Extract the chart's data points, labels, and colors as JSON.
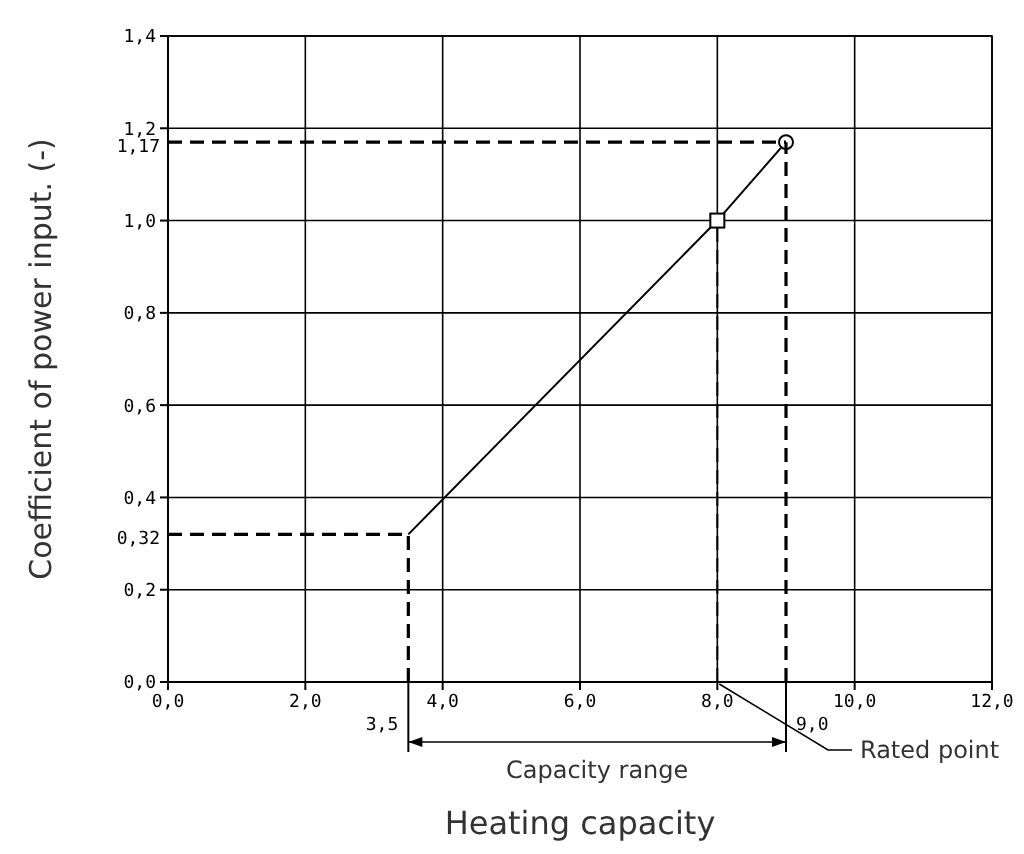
{
  "chart_data": {
    "type": "line",
    "xlabel": "Heating capacity",
    "ylabel": "Coefficient of power input. (-)",
    "series": [
      {
        "color": "#000000",
        "marker": "none",
        "x": [
          3.5,
          8,
          9
        ],
        "values": [
          0.32,
          1.0,
          1.17
        ]
      },
      {
        "type": "scatter",
        "color": "#000000",
        "marker": "square",
        "x": [
          8
        ],
        "values": [
          1.0
        ]
      },
      {
        "type": "scatter",
        "color": "#000000",
        "marker": "circle",
        "x": [
          9
        ],
        "values": [
          1.17
        ]
      }
    ],
    "xlim": [
      0,
      12
    ],
    "ylim": [
      0,
      1.4
    ],
    "xticks": [
      {
        "value": 0,
        "label": "0,0"
      },
      {
        "value": 2,
        "label": "2,0"
      },
      {
        "value": 4,
        "label": "4,0"
      },
      {
        "value": 6,
        "label": "6,0"
      },
      {
        "value": 8,
        "label": "8,0"
      },
      {
        "value": 10,
        "label": "10,0"
      },
      {
        "value": 12,
        "label": "12,0"
      }
    ],
    "yticks": [
      {
        "value": 0,
        "label": "0,0"
      },
      {
        "value": 0.2,
        "label": "0,2"
      },
      {
        "value": 0.4,
        "label": "0,4"
      },
      {
        "value": 0.6,
        "label": "0,6"
      },
      {
        "value": 0.8,
        "label": "0,8"
      },
      {
        "value": 1.0,
        "label": "1,0"
      },
      {
        "value": 1.2,
        "label": "1,2"
      },
      {
        "value": 1.4,
        "label": "1,4"
      }
    ],
    "ref_lines": [
      {
        "axis": "y",
        "value": 0.32,
        "label": "0,32",
        "color": "#000000",
        "line_style": "dashed"
      },
      {
        "axis": "y",
        "value": 1.17,
        "label": "1,17",
        "color": "#000000",
        "line_style": "dashed"
      },
      {
        "axis": "x",
        "value": 3.5,
        "label": "3,5",
        "color": "#000000",
        "line_style": "dashed"
      },
      {
        "axis": "x",
        "value": 8,
        "label": null,
        "color": "#000000",
        "line_style": "dashed"
      },
      {
        "axis": "x",
        "value": 9,
        "label": "9,0",
        "color": "#000000",
        "line_style": "dashed"
      }
    ],
    "annotations": [
      "Capacity range",
      {
        "text": "Rated point",
        "x": 8,
        "y": 0
      }
    ],
    "grid": true,
    "legend": false
  }
}
